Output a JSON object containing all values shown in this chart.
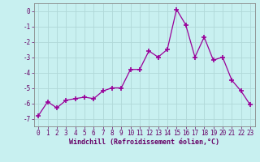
{
  "x": [
    0,
    1,
    2,
    3,
    4,
    5,
    6,
    7,
    8,
    9,
    10,
    11,
    12,
    13,
    14,
    15,
    16,
    17,
    18,
    19,
    20,
    21,
    22,
    23
  ],
  "y": [
    -6.8,
    -5.9,
    -6.3,
    -5.8,
    -5.7,
    -5.6,
    -5.7,
    -5.2,
    -5.0,
    -5.0,
    -3.8,
    -3.8,
    -2.6,
    -3.0,
    -2.5,
    0.1,
    -0.9,
    -3.0,
    -1.7,
    -3.2,
    -3.0,
    -4.5,
    -5.2,
    -6.1
  ],
  "line_color": "#990099",
  "marker": "+",
  "marker_size": 4,
  "bg_color": "#c8f0f0",
  "grid_color": "#b0d8d8",
  "xlabel": "Windchill (Refroidissement éolien,°C)",
  "ylabel": "",
  "xlim": [
    -0.5,
    23.5
  ],
  "ylim": [
    -7.5,
    0.5
  ],
  "xticks": [
    0,
    1,
    2,
    3,
    4,
    5,
    6,
    7,
    8,
    9,
    10,
    11,
    12,
    13,
    14,
    15,
    16,
    17,
    18,
    19,
    20,
    21,
    22,
    23
  ],
  "yticks": [
    0,
    -1,
    -2,
    -3,
    -4,
    -5,
    -6,
    -7
  ],
  "tick_color": "#660066",
  "label_color": "#660066",
  "spine_color": "#888888",
  "tick_font_size": 5.5,
  "label_font_size": 6.0,
  "line_width": 0.9,
  "marker_edge_width": 1.2
}
